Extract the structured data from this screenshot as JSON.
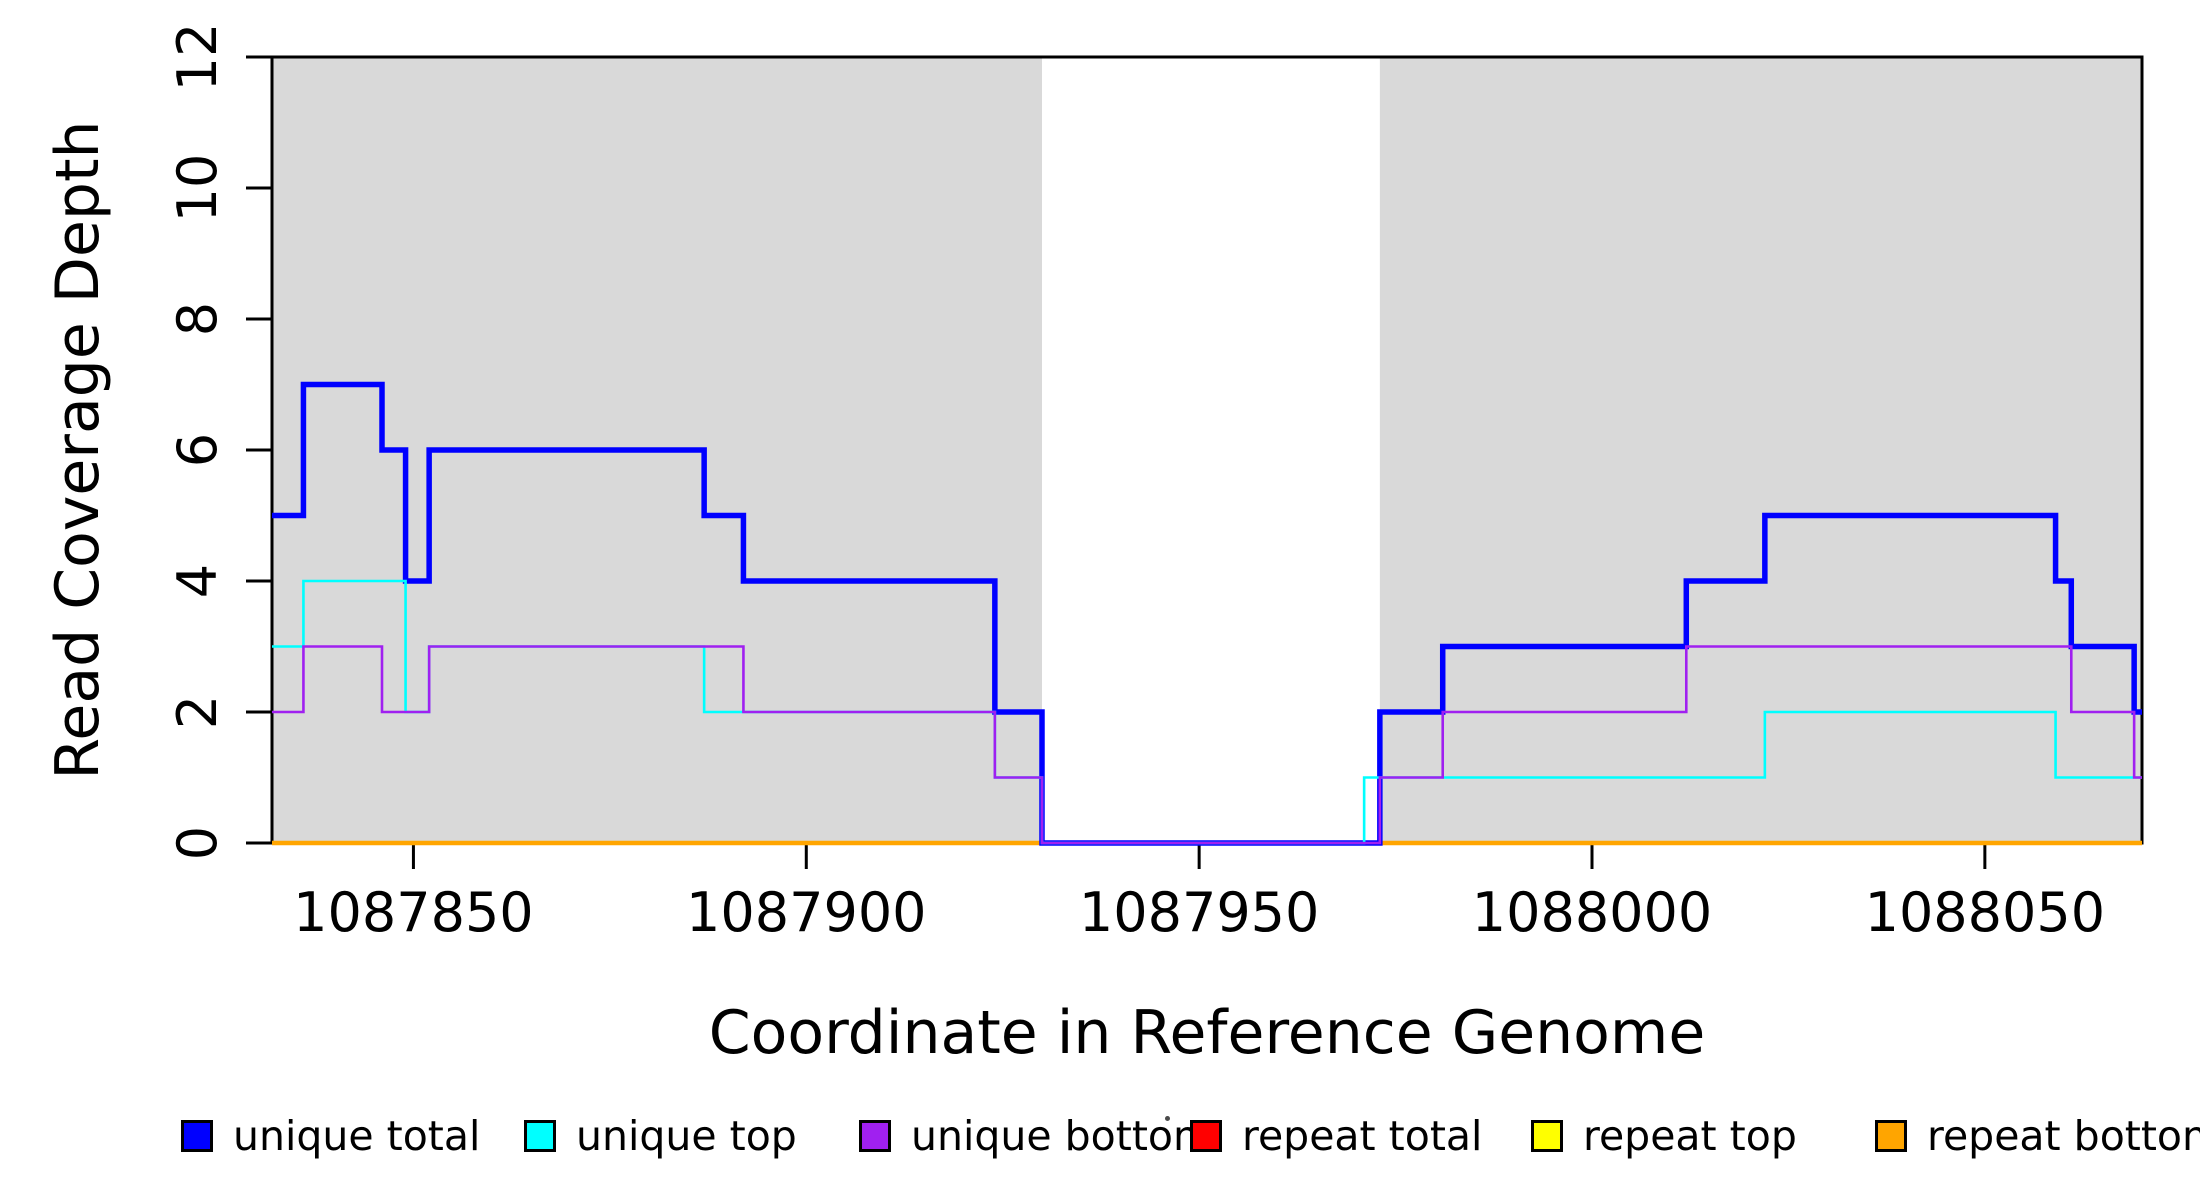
{
  "figure": {
    "kind": "R step plot of read coverage depth over a reference genome window"
  },
  "legend": [
    {
      "label": "unique total",
      "color": "#0000FF"
    },
    {
      "label": "unique top",
      "color": "#00FFFF"
    },
    {
      "label": "unique bottom",
      "color": "#A020F0"
    },
    {
      "label": "repeat total",
      "color": "#FF0000"
    },
    {
      "label": "repeat top",
      "color": "#FFFF00"
    },
    {
      "label": "repeat bottom",
      "color": "#FFA500"
    }
  ],
  "chart_data": {
    "type": "line",
    "step": true,
    "title": "",
    "xlabel": "Coordinate in Reference Genome",
    "ylabel": "Read Coverage Depth",
    "xlim": [
      1087832,
      1088070
    ],
    "ylim": [
      0,
      12
    ],
    "x_ticks": [
      1087850,
      1087900,
      1087950,
      1088000,
      1088050
    ],
    "y_ticks": [
      0,
      2,
      4,
      6,
      8,
      10,
      12
    ],
    "grid": false,
    "legend_position": "below",
    "background_color": "#FFFFFF",
    "shaded_color": "#D9D9D9",
    "shaded_regions": [
      {
        "start": 1087832,
        "end": 1087930
      },
      {
        "start": 1087973,
        "end": 1088070
      }
    ],
    "series": [
      {
        "name": "unique total",
        "color": "#0000FF",
        "steps": [
          [
            1087832,
            5
          ],
          [
            1087836,
            7
          ],
          [
            1087846,
            6
          ],
          [
            1087849,
            4
          ],
          [
            1087852,
            6
          ],
          [
            1087887,
            5
          ],
          [
            1087892,
            4
          ],
          [
            1087924,
            2
          ],
          [
            1087930,
            0
          ],
          [
            1087973,
            2
          ],
          [
            1087981,
            3
          ],
          [
            1088012,
            4
          ],
          [
            1088022,
            5
          ],
          [
            1088059,
            4
          ],
          [
            1088061,
            3
          ],
          [
            1088069,
            2
          ]
        ]
      },
      {
        "name": "unique top",
        "color": "#00FFFF",
        "steps": [
          [
            1087832,
            3
          ],
          [
            1087836,
            4
          ],
          [
            1087849,
            2
          ],
          [
            1087852,
            3
          ],
          [
            1087887,
            2
          ],
          [
            1087924,
            1
          ],
          [
            1087930,
            0
          ],
          [
            1087971,
            1
          ],
          [
            1088022,
            2
          ],
          [
            1088059,
            1
          ]
        ]
      },
      {
        "name": "unique bottom",
        "color": "#A020F0",
        "steps": [
          [
            1087832,
            2
          ],
          [
            1087836,
            3
          ],
          [
            1087846,
            2
          ],
          [
            1087852,
            3
          ],
          [
            1087892,
            2
          ],
          [
            1087924,
            1
          ],
          [
            1087930,
            0
          ],
          [
            1087973,
            1
          ],
          [
            1087981,
            2
          ],
          [
            1088012,
            3
          ],
          [
            1088061,
            2
          ],
          [
            1088069,
            1
          ]
        ]
      },
      {
        "name": "repeat total",
        "color": "#FF0000",
        "steps": [
          [
            1087832,
            0
          ]
        ]
      },
      {
        "name": "repeat top",
        "color": "#FFFF00",
        "steps": [
          [
            1087832,
            0
          ]
        ]
      },
      {
        "name": "repeat bottom",
        "color": "#FFA500",
        "steps": [
          [
            1087832,
            0
          ]
        ]
      }
    ],
    "draw_order": [
      "repeat total",
      "repeat top",
      "repeat bottom",
      "unique total",
      "unique top",
      "unique bottom"
    ]
  }
}
